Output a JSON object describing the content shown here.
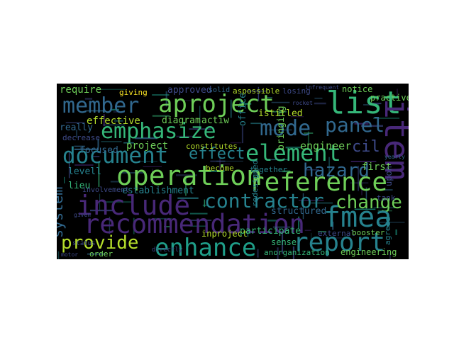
{
  "word_cloud": {
    "background": "#000000",
    "palette": {
      "purple": "#440154",
      "indigo": "#482878",
      "blue": "#3e4a89",
      "slate": "#31688e",
      "teal": "#26828e",
      "sea": "#1f9e89",
      "green": "#35b779",
      "lime": "#6ece58",
      "yellow": "#b5de2b",
      "gold": "#fde725"
    },
    "words": [
      {
        "text": "aproject",
        "color": "#6ece58"
      },
      {
        "text": "member",
        "color": "#31688e"
      },
      {
        "text": "list",
        "color": "#35b779"
      },
      {
        "text": "item",
        "color": "#482878"
      },
      {
        "text": "emphasize",
        "color": "#35b779"
      },
      {
        "text": "mode",
        "color": "#31688e"
      },
      {
        "text": "panel",
        "color": "#31688e"
      },
      {
        "text": "document",
        "color": "#26828e"
      },
      {
        "text": "effect",
        "color": "#26828e"
      },
      {
        "text": "element",
        "color": "#35b779"
      },
      {
        "text": "cil",
        "color": "#3e4a89"
      },
      {
        "text": "operation",
        "color": "#6ece58"
      },
      {
        "text": "hazard",
        "color": "#31688e"
      },
      {
        "text": "reference",
        "color": "#6ece58"
      },
      {
        "text": "include",
        "color": "#482878"
      },
      {
        "text": "contractor",
        "color": "#26828e"
      },
      {
        "text": "change",
        "color": "#6ece58"
      },
      {
        "text": "fmea",
        "color": "#26828e"
      },
      {
        "text": "recommendation",
        "color": "#482878"
      },
      {
        "text": "system",
        "color": "#31688e"
      },
      {
        "text": "provide",
        "color": "#b5de2b"
      },
      {
        "text": "enhance",
        "color": "#1f9e89"
      },
      {
        "text": "report",
        "color": "#26828e"
      },
      {
        "text": "require",
        "color": "#6ece58"
      },
      {
        "text": "giving",
        "color": "#fde725"
      },
      {
        "text": "approved",
        "color": "#3e4a89"
      },
      {
        "text": "solid",
        "color": "#31688e"
      },
      {
        "text": "aspossible",
        "color": "#b5de2b"
      },
      {
        "text": "losing",
        "color": "#3e4a89"
      },
      {
        "text": "notice",
        "color": "#6ece58"
      },
      {
        "text": "practive",
        "color": "#6ece58"
      },
      {
        "text": "istitled",
        "color": "#b5de2b"
      },
      {
        "text": "really",
        "color": "#31688e"
      },
      {
        "text": "effective",
        "color": "#b5de2b"
      },
      {
        "text": "diagram",
        "color": "#6ece58"
      },
      {
        "text": "actiw",
        "color": "#6ece58"
      },
      {
        "text": "office",
        "color": "#26828e"
      },
      {
        "text": "bringing",
        "color": "#6ece58"
      },
      {
        "text": "engineer",
        "color": "#6ece58"
      },
      {
        "text": "decrease",
        "color": "#3e4a89"
      },
      {
        "text": "project",
        "color": "#6ece58"
      },
      {
        "text": "constitutes",
        "color": "#b5de2b"
      },
      {
        "text": "first",
        "color": "#6ece58"
      },
      {
        "text": "focused",
        "color": "#31688e"
      },
      {
        "text": "become",
        "color": "#b5de2b"
      },
      {
        "text": "levell",
        "color": "#26828e"
      },
      {
        "text": "together",
        "color": "#26828e"
      },
      {
        "text": "redesigned",
        "color": "#26828e"
      },
      {
        "text": "lieu",
        "color": "#35b779"
      },
      {
        "text": "establishment",
        "color": "#26828e"
      },
      {
        "text": "upon",
        "color": "#3e4a89"
      },
      {
        "text": "tank",
        "color": "#3e4a89"
      },
      {
        "text": "involvement",
        "color": "#3e4a89"
      },
      {
        "text": "structured",
        "color": "#31688e"
      },
      {
        "text": "participate",
        "color": "#35b779"
      },
      {
        "text": "inproject",
        "color": "#b5de2b"
      },
      {
        "text": "external",
        "color": "#3e4a89"
      },
      {
        "text": "booster",
        "color": "#6ece58"
      },
      {
        "text": "agreed",
        "color": "#26828e"
      },
      {
        "text": "sense",
        "color": "#35b779"
      },
      {
        "text": "order",
        "color": "#6ece58"
      },
      {
        "text": "anorganization",
        "color": "#35b779"
      },
      {
        "text": "engineering",
        "color": "#6ece58"
      },
      {
        "text": "status",
        "color": "#3e4a89"
      },
      {
        "text": "directly",
        "color": "#3e4a89"
      },
      {
        "text": "motor",
        "color": "#3e4a89"
      },
      {
        "text": "given",
        "color": "#3e4a89"
      },
      {
        "text": "yearly",
        "color": "#31688e"
      },
      {
        "text": "rocket",
        "color": "#3e4a89"
      },
      {
        "text": "infrequent",
        "color": "#3e4a89"
      }
    ]
  }
}
